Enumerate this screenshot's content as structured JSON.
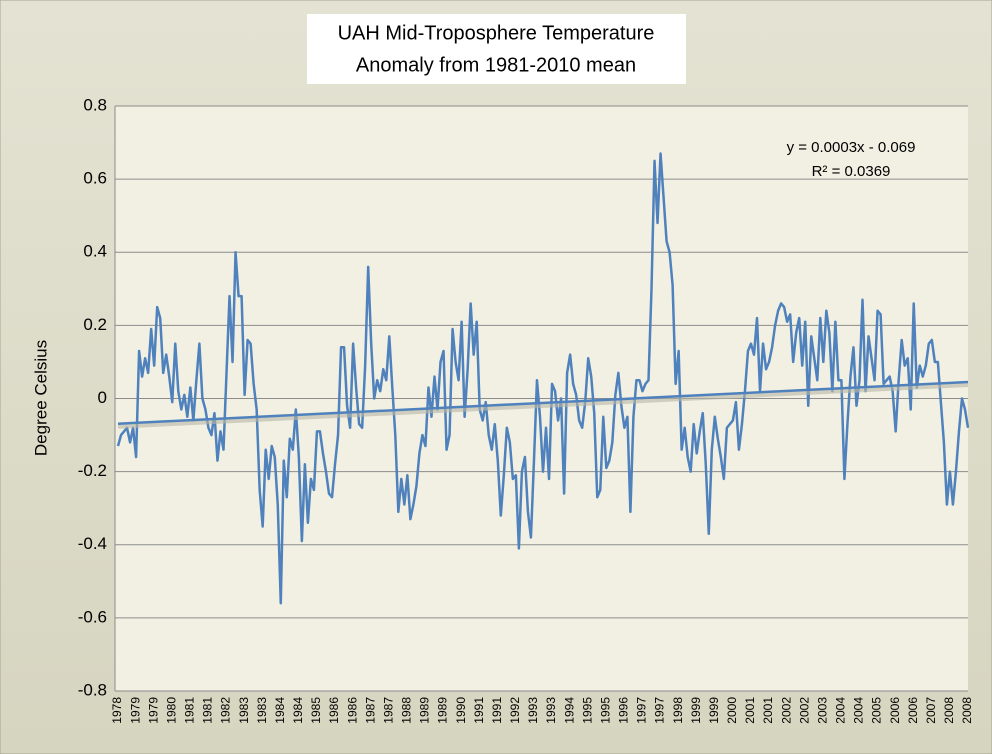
{
  "chart_data": {
    "type": "line",
    "title": [
      "UAH Mid-Troposphere Temperature",
      "Anomaly from 1981-2010 mean"
    ],
    "y_label": "Degree Celsius",
    "categories": [
      "1978",
      null,
      null,
      null,
      null,
      null,
      "1979",
      null,
      null,
      null,
      null,
      null,
      "1979",
      null,
      null,
      null,
      null,
      null,
      "1980",
      null,
      null,
      null,
      null,
      null,
      "1981",
      null,
      null,
      null,
      null,
      null,
      "1981",
      null,
      null,
      null,
      null,
      null,
      "1982",
      null,
      null,
      null,
      null,
      null,
      "1983",
      null,
      null,
      null,
      null,
      null,
      "1983",
      null,
      null,
      null,
      null,
      null,
      "1984",
      null,
      null,
      null,
      null,
      null,
      "1984",
      null,
      null,
      null,
      null,
      null,
      "1985",
      null,
      null,
      null,
      null,
      null,
      "1986",
      null,
      null,
      null,
      null,
      null,
      "1986",
      null,
      null,
      null,
      null,
      null,
      "1987",
      null,
      null,
      null,
      null,
      null,
      "1987",
      null,
      null,
      null,
      null,
      null,
      "1988",
      null,
      null,
      null,
      null,
      null,
      "1989",
      null,
      null,
      null,
      null,
      null,
      "1989",
      null,
      null,
      null,
      null,
      null,
      "1990",
      null,
      null,
      null,
      null,
      null,
      "1991",
      null,
      null,
      null,
      null,
      null,
      "1991",
      null,
      null,
      null,
      null,
      null,
      "1992",
      null,
      null,
      null,
      null,
      null,
      "1993",
      null,
      null,
      null,
      null,
      null,
      "1993",
      null,
      null,
      null,
      null,
      null,
      "1994",
      null,
      null,
      null,
      null,
      null,
      "1995",
      null,
      null,
      null,
      null,
      null,
      "1995",
      null,
      null,
      null,
      null,
      null,
      "1996",
      null,
      null,
      null,
      null,
      null,
      "1997",
      null,
      null,
      null,
      null,
      null,
      "1997",
      null,
      null,
      null,
      null,
      null,
      "1998",
      null,
      null,
      null,
      null,
      null,
      "1999",
      null,
      null,
      null,
      null,
      null,
      "1999",
      null,
      null,
      null,
      null,
      null,
      "2000",
      null,
      null,
      null,
      null,
      null,
      "2001",
      null,
      null,
      null,
      null,
      null,
      "2001",
      null,
      null,
      null,
      null,
      null,
      "2002",
      null,
      null,
      null,
      null,
      null,
      "2002",
      null,
      null,
      null,
      null,
      null,
      "2003",
      null,
      null,
      null,
      null,
      null,
      "2004",
      null,
      null,
      null,
      null,
      null,
      "2004",
      null,
      null,
      null,
      null,
      null,
      "2005",
      null,
      null,
      null,
      null,
      null,
      "2006",
      null,
      null,
      null,
      null,
      null,
      "2006",
      null,
      null,
      null,
      null,
      null,
      "2007",
      null,
      null,
      null,
      null,
      null,
      "2008",
      null,
      null,
      null,
      null,
      null,
      "2008"
    ],
    "series": [
      {
        "name": "UAH Mid-Troposphere",
        "color": "#4f81bd",
        "values": [
          -0.13,
          -0.1,
          -0.09,
          -0.08,
          -0.12,
          -0.08,
          -0.16,
          0.13,
          0.06,
          0.11,
          0.07,
          0.19,
          0.09,
          0.25,
          0.22,
          0.07,
          0.12,
          0.06,
          -0.01,
          0.15,
          0.02,
          -0.03,
          0.01,
          -0.05,
          0.03,
          -0.06,
          0.05,
          0.15,
          0.0,
          -0.03,
          -0.08,
          -0.1,
          -0.04,
          -0.17,
          -0.09,
          -0.14,
          0.07,
          0.28,
          0.1,
          0.4,
          0.28,
          0.28,
          0.01,
          0.16,
          0.15,
          0.04,
          -0.03,
          -0.25,
          -0.35,
          -0.14,
          -0.22,
          -0.13,
          -0.16,
          -0.29,
          -0.56,
          -0.17,
          -0.27,
          -0.11,
          -0.14,
          -0.03,
          -0.16,
          -0.39,
          -0.18,
          -0.34,
          -0.22,
          -0.25,
          -0.09,
          -0.09,
          -0.15,
          -0.2,
          -0.26,
          -0.27,
          -0.18,
          -0.1,
          0.14,
          0.14,
          -0.02,
          -0.08,
          0.15,
          0.03,
          -0.07,
          -0.08,
          0.09,
          0.36,
          0.15,
          0.0,
          0.05,
          0.02,
          0.08,
          0.05,
          0.17,
          0.03,
          -0.1,
          -0.31,
          -0.22,
          -0.29,
          -0.21,
          -0.33,
          -0.29,
          -0.24,
          -0.15,
          -0.1,
          -0.13,
          0.03,
          -0.05,
          0.06,
          -0.03,
          0.1,
          0.13,
          -0.14,
          -0.1,
          0.19,
          0.1,
          0.05,
          0.21,
          -0.05,
          0.08,
          0.26,
          0.12,
          0.21,
          -0.03,
          -0.06,
          -0.01,
          -0.1,
          -0.14,
          -0.07,
          -0.17,
          -0.32,
          -0.21,
          -0.08,
          -0.12,
          -0.22,
          -0.21,
          -0.41,
          -0.2,
          -0.16,
          -0.31,
          -0.38,
          -0.17,
          0.05,
          -0.05,
          -0.2,
          -0.08,
          -0.22,
          0.04,
          0.02,
          -0.06,
          0.0,
          -0.26,
          0.07,
          0.12,
          0.04,
          0.01,
          -0.06,
          -0.08,
          -0.01,
          0.11,
          0.06,
          -0.04,
          -0.27,
          -0.25,
          -0.05,
          -0.19,
          -0.17,
          -0.12,
          0.01,
          0.07,
          -0.02,
          -0.08,
          -0.05,
          -0.31,
          -0.05,
          0.05,
          0.05,
          0.02,
          0.04,
          0.05,
          0.3,
          0.65,
          0.48,
          0.67,
          0.55,
          0.43,
          0.4,
          0.31,
          0.04,
          0.13,
          -0.14,
          -0.08,
          -0.16,
          -0.2,
          -0.07,
          -0.15,
          -0.09,
          -0.04,
          -0.18,
          -0.37,
          -0.14,
          -0.05,
          -0.11,
          -0.16,
          -0.22,
          -0.08,
          -0.07,
          -0.06,
          -0.01,
          -0.14,
          -0.07,
          0.02,
          0.13,
          0.15,
          0.12,
          0.22,
          0.02,
          0.15,
          0.08,
          0.1,
          0.14,
          0.2,
          0.24,
          0.26,
          0.25,
          0.21,
          0.23,
          0.1,
          0.18,
          0.22,
          0.09,
          0.21,
          -0.02,
          0.17,
          0.11,
          0.05,
          0.22,
          0.1,
          0.24,
          0.18,
          0.02,
          0.21,
          0.05,
          0.05,
          -0.22,
          -0.07,
          0.06,
          0.14,
          -0.02,
          0.05,
          0.27,
          0.02,
          0.17,
          0.11,
          0.05,
          0.24,
          0.23,
          0.04,
          0.05,
          0.06,
          0.02,
          -0.09,
          0.05,
          0.16,
          0.09,
          0.11,
          -0.03,
          0.26,
          0.03,
          0.09,
          0.06,
          0.09,
          0.15,
          0.16,
          0.1,
          0.1,
          -0.01,
          -0.12,
          -0.29,
          -0.2,
          -0.29,
          -0.2,
          -0.09,
          0.0,
          -0.03,
          -0.08
        ]
      }
    ],
    "trendline": {
      "equation": "y = 0.0003x - 0.069",
      "r_squared": "R² = 0.0369",
      "color": "#4f81bd",
      "values": [
        -0.069,
        0.045
      ]
    },
    "ylim": [
      -0.8,
      0.8
    ],
    "yticks": [
      -0.8,
      -0.6,
      -0.4,
      -0.2,
      0,
      0.2,
      0.4,
      0.6,
      0.8
    ],
    "grid": true
  }
}
